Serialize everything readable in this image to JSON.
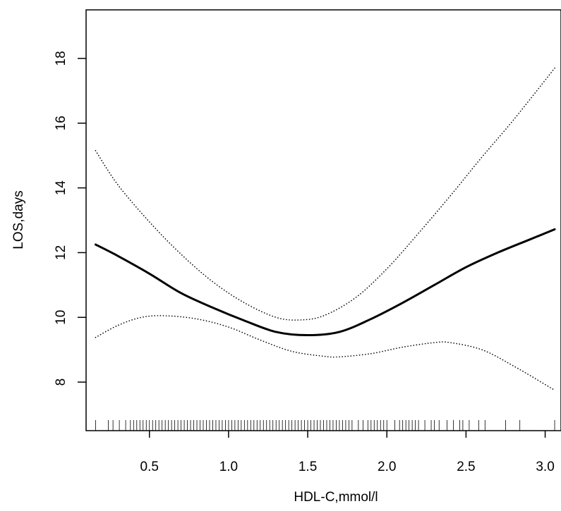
{
  "chart_data": {
    "type": "line",
    "title": "",
    "xlabel": "HDL-C,mmol/l",
    "ylabel": "LOS,days",
    "xlim": [
      0.1,
      3.1
    ],
    "ylim": [
      6.5,
      19.5
    ],
    "xticks": [
      0.5,
      1.0,
      1.5,
      2.0,
      2.5,
      3.0
    ],
    "xtick_labels": [
      "0.5",
      "1.0",
      "1.5",
      "2.0",
      "2.5",
      "3.0"
    ],
    "yticks": [
      8,
      10,
      12,
      14,
      16,
      18
    ],
    "ytick_labels": [
      "8",
      "10",
      "12",
      "14",
      "16",
      "18"
    ],
    "grid": false,
    "legend": "none",
    "series": [
      {
        "style": "solid",
        "x": [
          0.16,
          0.3,
          0.5,
          0.7,
          0.9,
          1.1,
          1.3,
          1.5,
          1.7,
          1.9,
          2.1,
          2.3,
          2.5,
          2.7,
          2.9,
          3.06
        ],
        "y": [
          12.25,
          11.9,
          11.35,
          10.75,
          10.3,
          9.9,
          9.55,
          9.45,
          9.55,
          9.95,
          10.45,
          11.0,
          11.55,
          12.0,
          12.4,
          12.72
        ]
      },
      {
        "style": "dotted",
        "x": [
          0.16,
          0.3,
          0.5,
          0.7,
          0.9,
          1.1,
          1.3,
          1.45,
          1.6,
          1.8,
          2.0,
          2.2,
          2.4,
          2.6,
          2.8,
          3.06
        ],
        "y": [
          15.15,
          14.1,
          12.95,
          11.95,
          11.1,
          10.45,
          10.0,
          9.92,
          10.05,
          10.6,
          11.5,
          12.6,
          13.75,
          14.95,
          16.1,
          17.7
        ]
      },
      {
        "style": "dotted",
        "x": [
          0.16,
          0.3,
          0.45,
          0.6,
          0.8,
          1.0,
          1.2,
          1.4,
          1.6,
          1.7,
          1.9,
          2.1,
          2.3,
          2.4,
          2.6,
          2.8,
          3.06
        ],
        "y": [
          9.38,
          9.75,
          10.0,
          10.05,
          9.95,
          9.7,
          9.3,
          8.95,
          8.8,
          8.78,
          8.88,
          9.08,
          9.22,
          9.22,
          9.0,
          8.5,
          7.75
        ]
      }
    ],
    "rug": [
      0.16,
      0.24,
      0.27,
      0.31,
      0.35,
      0.38,
      0.4,
      0.42,
      0.44,
      0.46,
      0.48,
      0.5,
      0.52,
      0.54,
      0.56,
      0.58,
      0.6,
      0.62,
      0.64,
      0.66,
      0.68,
      0.7,
      0.72,
      0.74,
      0.76,
      0.78,
      0.8,
      0.82,
      0.84,
      0.86,
      0.88,
      0.9,
      0.92,
      0.94,
      0.96,
      0.98,
      1.0,
      1.02,
      1.04,
      1.06,
      1.08,
      1.1,
      1.12,
      1.14,
      1.16,
      1.18,
      1.2,
      1.22,
      1.24,
      1.26,
      1.28,
      1.3,
      1.32,
      1.34,
      1.36,
      1.38,
      1.4,
      1.42,
      1.44,
      1.46,
      1.48,
      1.5,
      1.52,
      1.54,
      1.56,
      1.58,
      1.6,
      1.62,
      1.64,
      1.66,
      1.68,
      1.7,
      1.72,
      1.74,
      1.76,
      1.78,
      1.82,
      1.85,
      1.88,
      1.9,
      1.92,
      1.94,
      1.96,
      1.98,
      2.0,
      2.05,
      2.08,
      2.1,
      2.12,
      2.14,
      2.16,
      2.18,
      2.2,
      2.24,
      2.28,
      2.3,
      2.33,
      2.38,
      2.42,
      2.46,
      2.48,
      2.52,
      2.58,
      2.62,
      2.75,
      2.84,
      3.06
    ]
  }
}
